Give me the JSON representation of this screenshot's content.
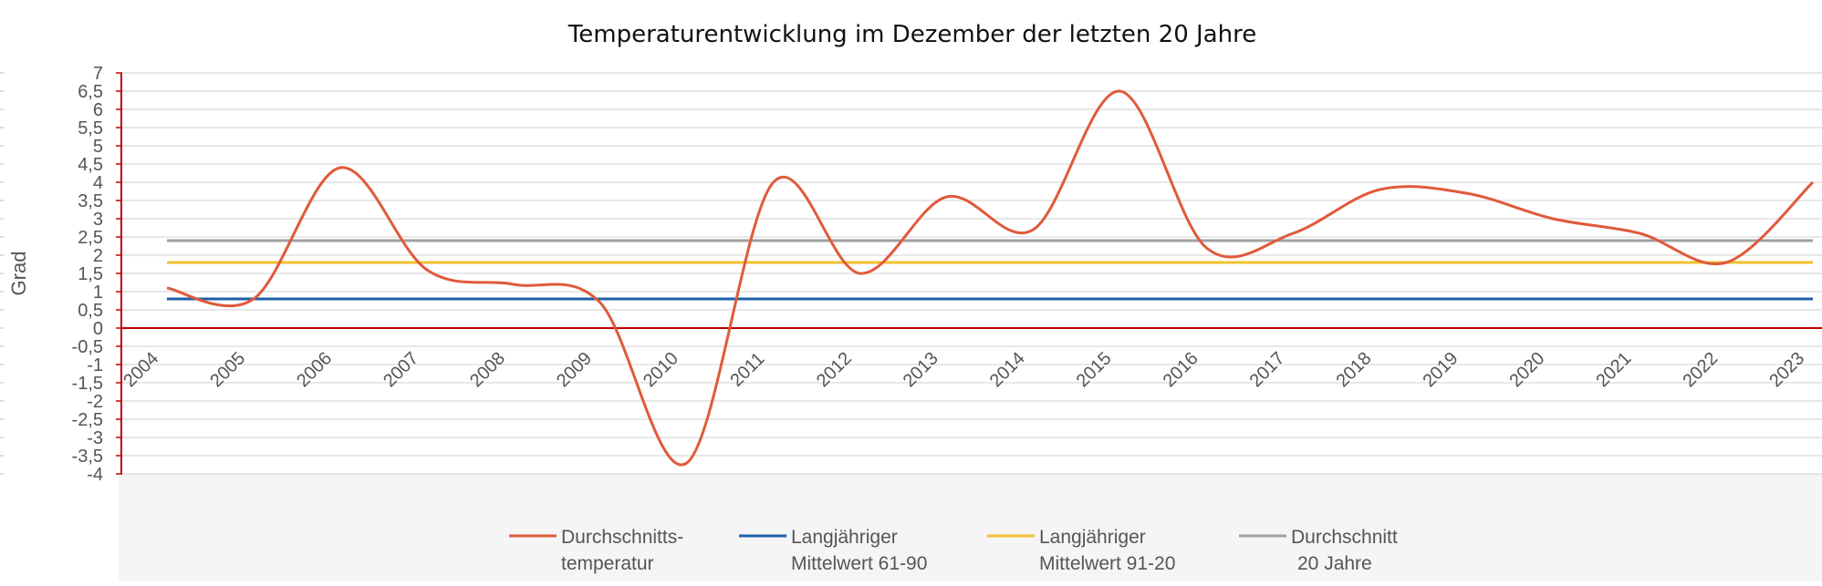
{
  "chart_data": {
    "type": "line",
    "title": "Temperaturentwicklung im Dezember der letzten 20 Jahre",
    "ylabel": "Grad",
    "xlabel": "",
    "ylim": [
      -4,
      7
    ],
    "yticks": [
      -4,
      -3.5,
      -3,
      -2.5,
      -2,
      -1.5,
      -1,
      -0.5,
      0,
      0.5,
      1,
      1.5,
      2,
      2.5,
      3,
      3.5,
      4,
      4.5,
      5,
      5.5,
      6,
      6.5,
      7
    ],
    "ytick_labels": [
      "-4",
      "-3,5",
      "-3",
      "-2,5",
      "-2",
      "-1,5",
      "-1",
      "-0,5",
      "0",
      "0,5",
      "1",
      "1,5",
      "2",
      "2,5",
      "3",
      "3,5",
      "4",
      "4,5",
      "5",
      "5,5",
      "6",
      "6,5",
      "7"
    ],
    "categories": [
      "2004",
      "2005",
      "2006",
      "2007",
      "2008",
      "2009",
      "2010",
      "2011",
      "2012",
      "2013",
      "2014",
      "2015",
      "2016",
      "2017",
      "2018",
      "2019",
      "2020",
      "2021",
      "2022",
      "2023"
    ],
    "grid": true,
    "legend_position": "bottom",
    "series": [
      {
        "key": "durchschnitt",
        "name_lines": [
          "Durchschnitts-",
          "temperatur"
        ],
        "color": "#e05a3a",
        "values": [
          1.1,
          0.8,
          4.4,
          1.6,
          1.2,
          0.7,
          -3.7,
          4.0,
          1.5,
          3.6,
          2.7,
          6.5,
          2.2,
          2.6,
          3.8,
          3.7,
          3.0,
          2.6,
          1.8,
          4.0
        ]
      },
      {
        "key": "mittel6190",
        "name_lines": [
          "Langjähriger",
          "Mittelwert 61-90"
        ],
        "color": "#1f5fa8",
        "values": [
          0.8,
          0.8,
          0.8,
          0.8,
          0.8,
          0.8,
          0.8,
          0.8,
          0.8,
          0.8,
          0.8,
          0.8,
          0.8,
          0.8,
          0.8,
          0.8,
          0.8,
          0.8,
          0.8,
          0.8
        ]
      },
      {
        "key": "mittel9120",
        "name_lines": [
          "Langjähriger",
          "Mittelwert 91-20"
        ],
        "color": "#f2c12e",
        "values": [
          1.8,
          1.8,
          1.8,
          1.8,
          1.8,
          1.8,
          1.8,
          1.8,
          1.8,
          1.8,
          1.8,
          1.8,
          1.8,
          1.8,
          1.8,
          1.8,
          1.8,
          1.8,
          1.8,
          1.8
        ]
      },
      {
        "key": "schnitt20",
        "name_lines": [
          "Durchschnitt",
          "20 Jahre"
        ],
        "color": "#a0a0a0",
        "values": [
          2.4,
          2.4,
          2.4,
          2.4,
          2.4,
          2.4,
          2.4,
          2.4,
          2.4,
          2.4,
          2.4,
          2.4,
          2.4,
          2.4,
          2.4,
          2.4,
          2.4,
          2.4,
          2.4,
          2.4
        ]
      }
    ],
    "colors": {
      "axis": "#c00000",
      "grid": "#d9d9d9",
      "legend_bg": "#f5f5f5"
    }
  }
}
